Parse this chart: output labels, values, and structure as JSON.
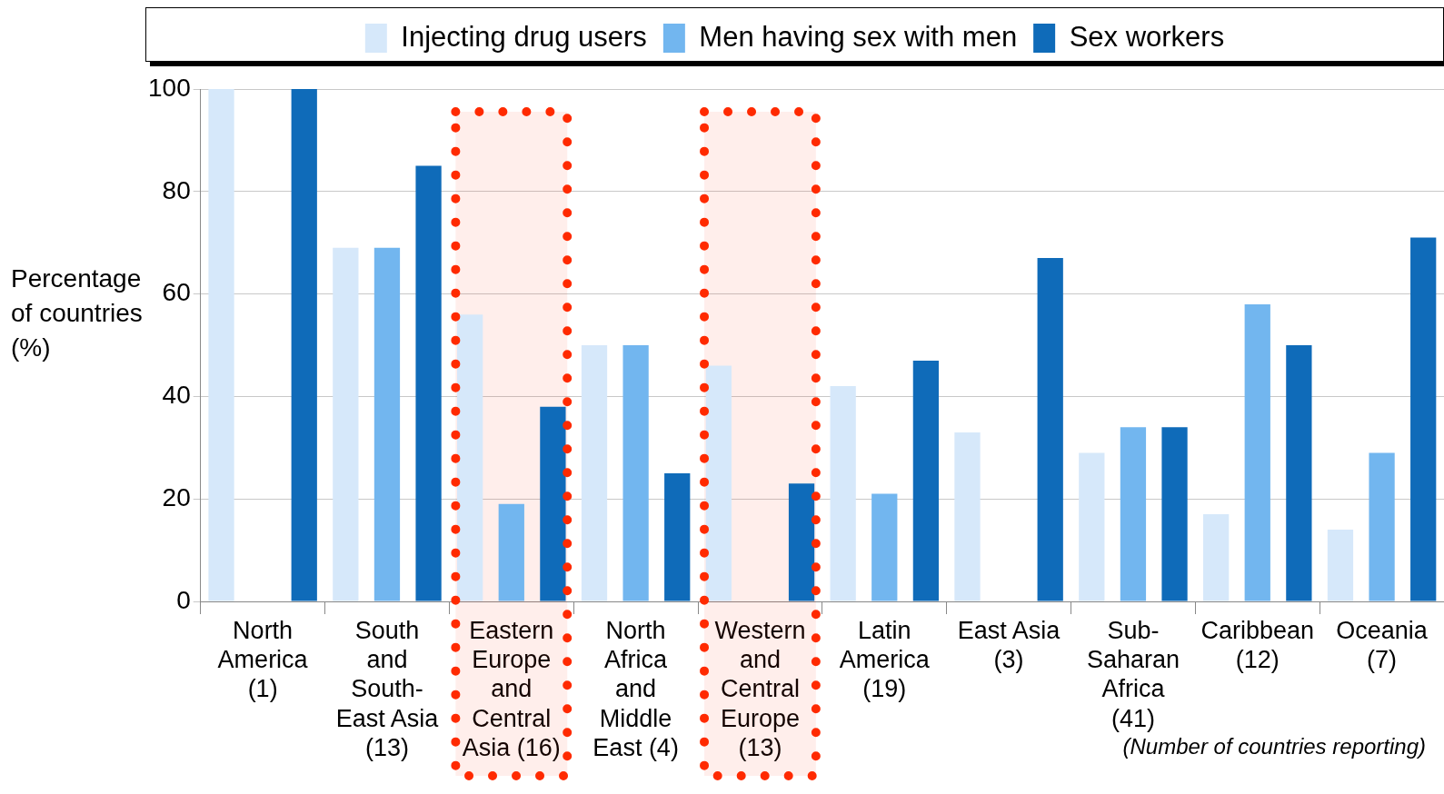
{
  "chart_data": {
    "type": "bar",
    "ylabel": "Percentage of countries (%)",
    "categories": [
      "North America (1)",
      "South and South-East Asia (13)",
      "Eastern Europe and Central Asia (16)",
      "North Africa and Middle East (4)",
      "Western and Central Europe (13)",
      "Latin America (19)",
      "East Asia (3)",
      "Sub-Saharan Africa (41)",
      "Caribbean (12)",
      "Oceania (7)"
    ],
    "series": [
      {
        "name": "Injecting drug users",
        "color": "#d6e8fa",
        "values": [
          100,
          69,
          56,
          50,
          46,
          42,
          33,
          29,
          17,
          14
        ]
      },
      {
        "name": "Men having sex with men",
        "color": "#72b6ef",
        "values": [
          null,
          69,
          19,
          50,
          null,
          21,
          null,
          34,
          58,
          29
        ]
      },
      {
        "name": "Sex workers",
        "color": "#0f6bb9",
        "values": [
          100,
          85,
          38,
          25,
          23,
          47,
          67,
          34,
          50,
          71
        ]
      }
    ],
    "ylim": [
      0,
      100
    ],
    "yticks": [
      0,
      20,
      40,
      60,
      80,
      100
    ],
    "grid": "y",
    "legend": "top",
    "bands": [
      {
        "axis": "x",
        "from": "Eastern Europe and Central Asia (16)",
        "to": "Eastern Europe and Central Asia (16)",
        "color": "#ff2a00"
      },
      {
        "axis": "x",
        "from": "Western and Central Europe (13)",
        "to": "Western and Central Europe (13)",
        "color": "#ff2a00"
      }
    ],
    "annotations": [
      "(Number of countries reporting)"
    ]
  }
}
